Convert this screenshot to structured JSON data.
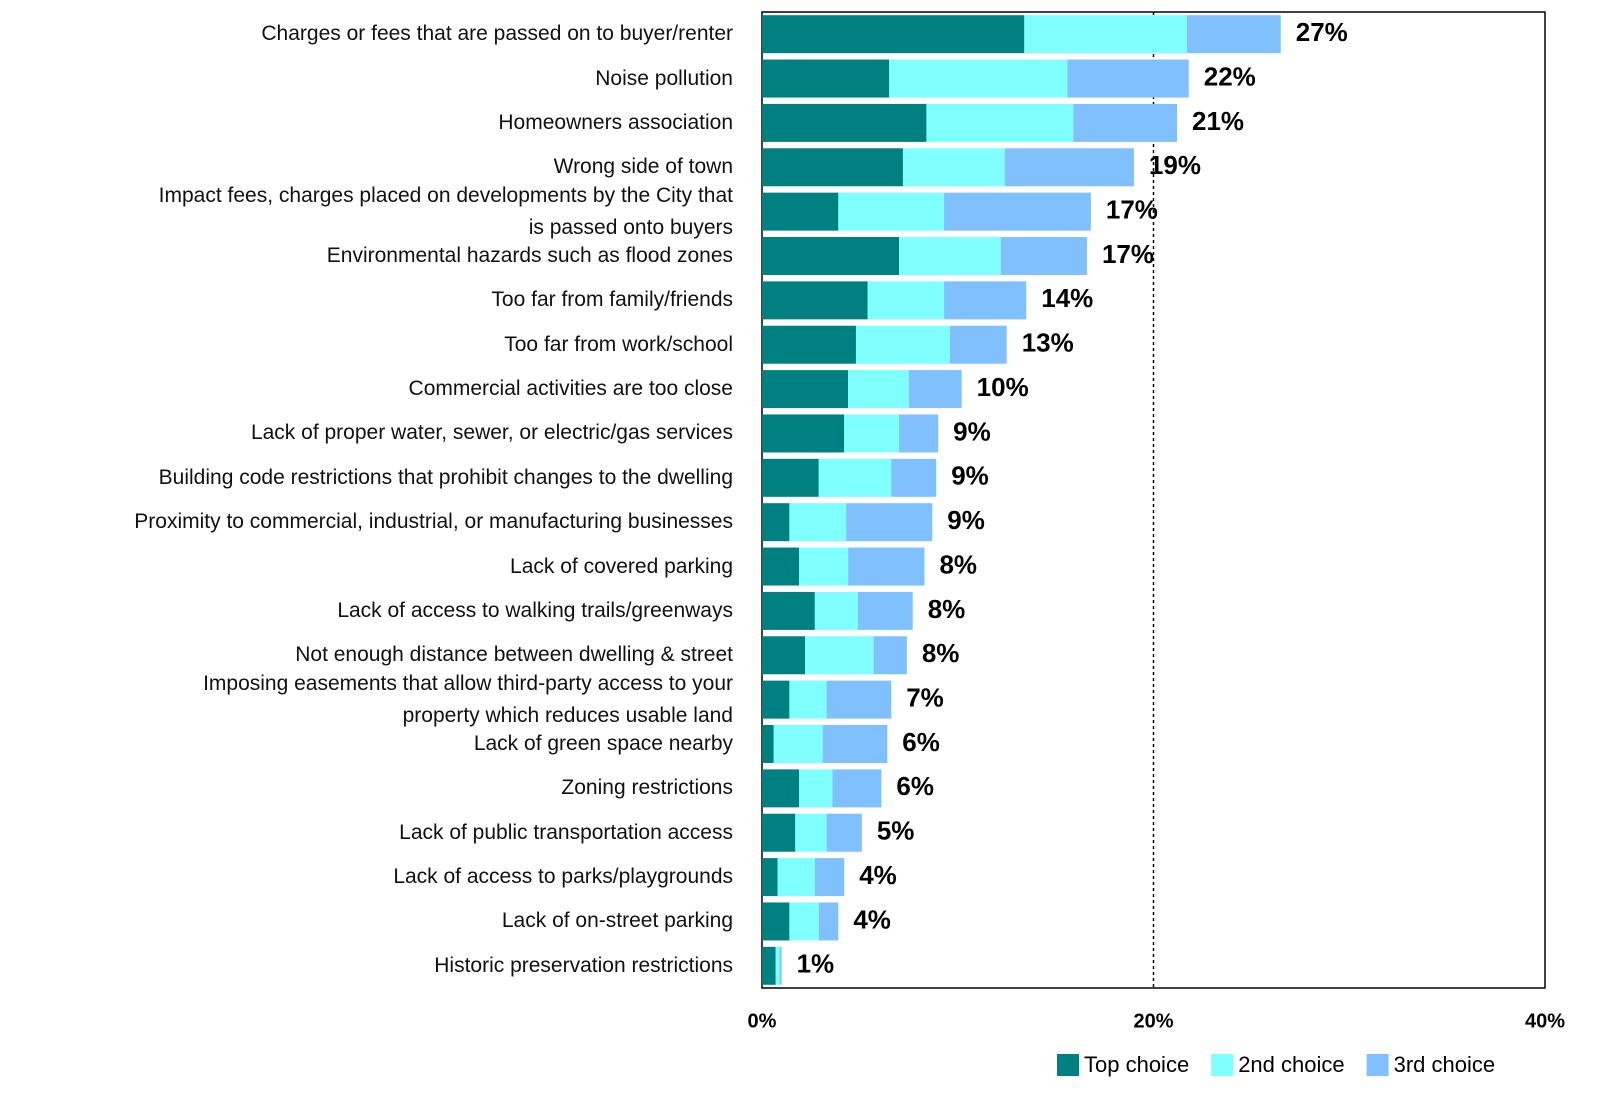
{
  "chart_data": {
    "type": "stacked_barh",
    "categories": [
      "Charges or fees that are passed on to buyer/renter",
      "Noise pollution",
      "Homeowners association",
      "Wrong side of town",
      "Impact fees, charges placed on developments by the City that\nis passed onto buyers",
      "Environmental hazards such as flood zones",
      "Too far from family/friends",
      "Too far from work/school",
      "Commercial activities are too close",
      "Lack of proper water, sewer, or electric/gas services",
      "Building code restrictions that prohibit changes to the dwelling",
      "Proximity to commercial, industrial, or manufacturing businesses",
      "Lack of covered parking",
      "Lack of access to walking trails/greenways",
      "Not enough distance between dwelling & street",
      "Imposing easements that allow third-party access to your\nproperty which reduces usable land",
      "Lack of green space nearby",
      "Zoning restrictions",
      "Lack of public transportation access",
      "Lack of access to parks/playgrounds",
      "Lack of on-street parking",
      "Historic preservation restrictions"
    ],
    "series": [
      {
        "name": "Top choice",
        "color": "#008080",
        "values": [
          13.4,
          6.5,
          8.4,
          7.2,
          3.9,
          7.0,
          5.4,
          4.8,
          4.4,
          4.2,
          2.9,
          1.4,
          1.9,
          2.7,
          2.2,
          1.4,
          0.6,
          1.9,
          1.7,
          0.8,
          1.4,
          0.7
        ]
      },
      {
        "name": "2nd choice",
        "color": "#80ffff",
        "values": [
          8.3,
          9.1,
          7.5,
          5.2,
          5.4,
          5.2,
          3.9,
          4.8,
          3.1,
          2.8,
          3.7,
          2.9,
          2.5,
          2.2,
          3.5,
          1.9,
          2.5,
          1.7,
          1.6,
          1.9,
          1.5,
          0.2
        ]
      },
      {
        "name": "3rd choice",
        "color": "#80c0ff",
        "values": [
          4.8,
          6.2,
          5.3,
          6.6,
          7.5,
          4.4,
          4.2,
          2.9,
          2.7,
          2.0,
          2.3,
          4.4,
          3.9,
          2.8,
          1.7,
          3.3,
          3.3,
          2.5,
          1.8,
          1.5,
          1.0,
          0.1
        ]
      }
    ],
    "totals": {
      "values": [
        27,
        22,
        21,
        19,
        17,
        17,
        14,
        13,
        10,
        9,
        9,
        9,
        8,
        8,
        8,
        7,
        6,
        6,
        5,
        4,
        4,
        1
      ],
      "value_labels": [
        "27%",
        "22%",
        "21%",
        "19%",
        "17%",
        "17%",
        "14%",
        "13%",
        "10%",
        "9%",
        "9%",
        "9%",
        "8%",
        "8%",
        "8%",
        "7%",
        "6%",
        "6%",
        "5%",
        "4%",
        "4%",
        "1%"
      ]
    },
    "xlim": [
      0,
      40
    ],
    "xticks": [
      {
        "value": 0,
        "label": "0%"
      },
      {
        "value": 20,
        "label": "20%"
      },
      {
        "value": 40,
        "label": "40%"
      }
    ],
    "grid": true,
    "legend": "bottom"
  }
}
